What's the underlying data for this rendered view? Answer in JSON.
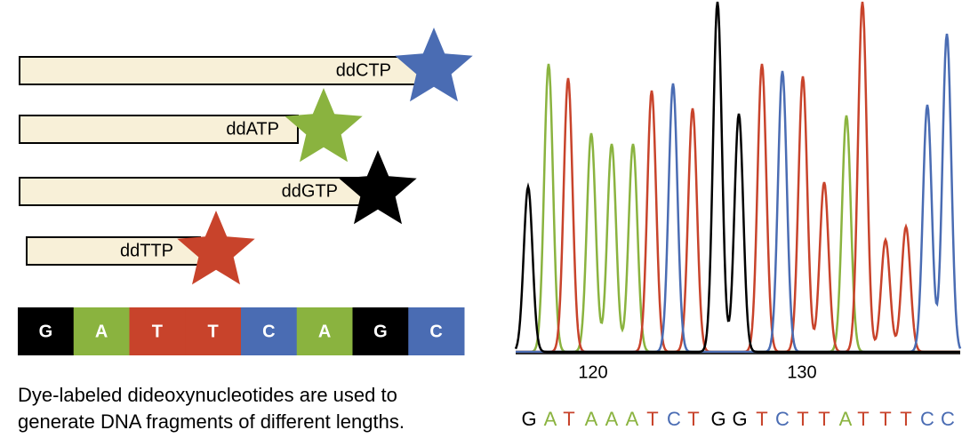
{
  "fragments": [
    {
      "label": "ddCTP",
      "color": "#4a6cb3"
    },
    {
      "label": "ddATP",
      "color": "#8ab33f"
    },
    {
      "label": "ddGTP",
      "color": "#000000"
    },
    {
      "label": "ddTTP",
      "color": "#c8432b"
    }
  ],
  "sequence_bar": [
    "G",
    "A",
    "T",
    "T",
    "C",
    "A",
    "G",
    "C"
  ],
  "caption": [
    "Dye-labeled dideoxynucleotides are used to",
    "generate DNA fragments of different lengths."
  ],
  "chromatogram": {
    "axis_labels": [
      "120",
      "130"
    ],
    "bases": [
      "G",
      "A",
      "T",
      "A",
      "A",
      "A",
      "T",
      "C",
      "T",
      "G",
      "G",
      "T",
      "C",
      "T",
      "T",
      "A",
      "T",
      "T",
      "T",
      "C",
      "C"
    ]
  },
  "base_colors": {
    "G": "#000000",
    "A": "#8ab33f",
    "T": "#c8432b",
    "C": "#4a6cb3"
  }
}
